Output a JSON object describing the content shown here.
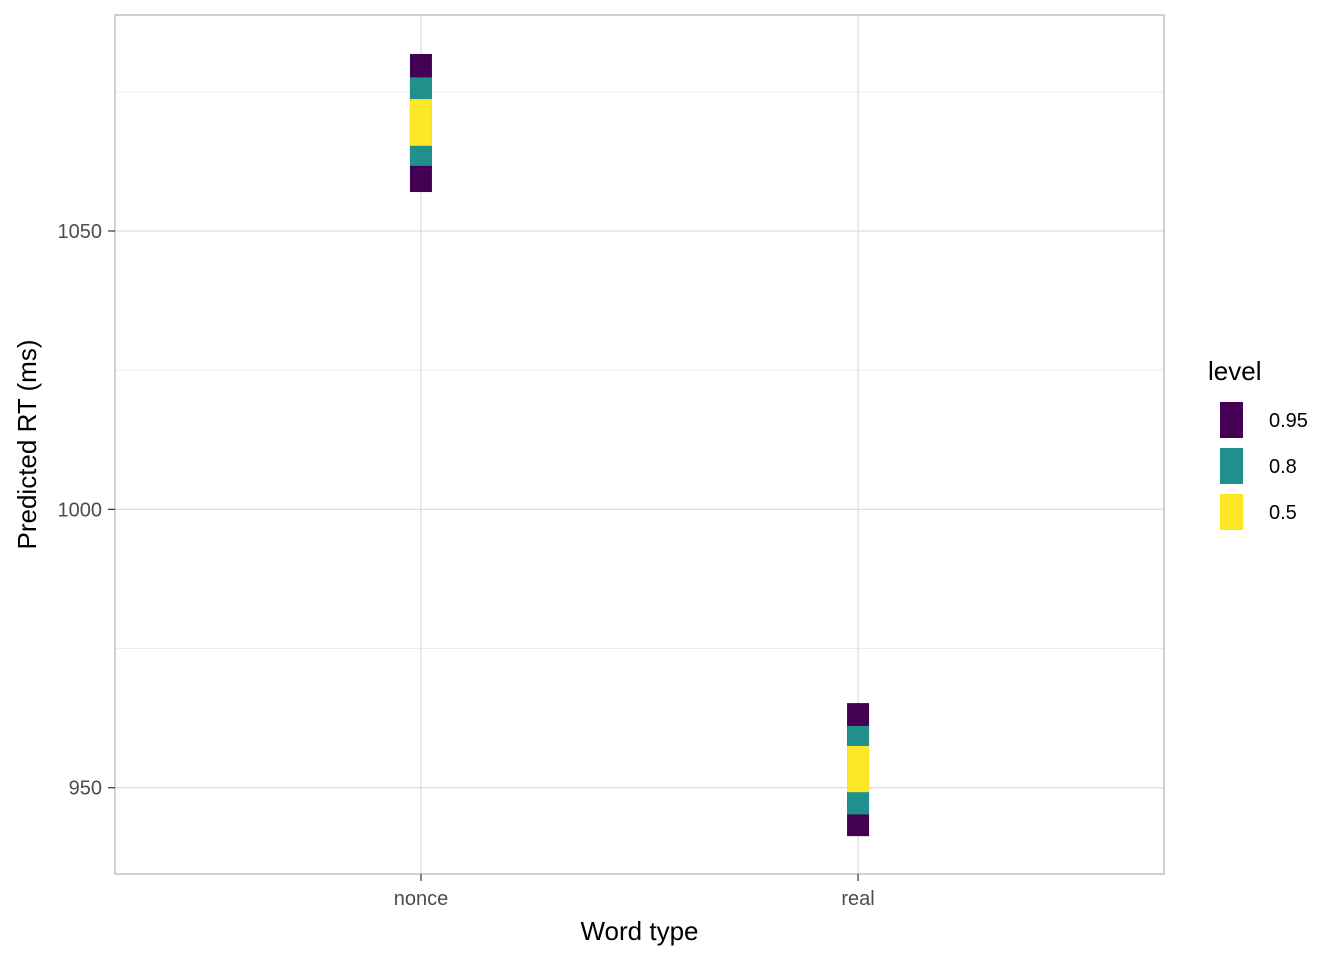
{
  "chart_data": {
    "type": "interval",
    "title": "",
    "xlabel": "Word type",
    "ylabel": "Predicted RT (ms)",
    "categories": [
      "nonce",
      "real"
    ],
    "ylim": [
      934.5,
      1088.8
    ],
    "y_ticks": [
      950,
      1000,
      1050
    ],
    "y_tick_labels": [
      "950",
      "1000",
      "1050"
    ],
    "grid": true,
    "legend": {
      "title": "level",
      "position": "right",
      "entries": [
        {
          "label": "0.95",
          "color": "#440154"
        },
        {
          "label": "0.8",
          "color": "#21908C"
        },
        {
          "label": "0.5",
          "color": "#FDE725"
        }
      ]
    },
    "series": [
      {
        "category": "nonce",
        "intervals": [
          {
            "level": "0.95",
            "lower": 1057.0,
            "upper": 1081.8
          },
          {
            "level": "0.8",
            "lower": 1061.7,
            "upper": 1077.6
          },
          {
            "level": "0.5",
            "lower": 1065.3,
            "upper": 1073.7
          }
        ]
      },
      {
        "category": "real",
        "intervals": [
          {
            "level": "0.95",
            "lower": 941.3,
            "upper": 965.2
          },
          {
            "level": "0.8",
            "lower": 945.2,
            "upper": 961.1
          },
          {
            "level": "0.5",
            "lower": 949.2,
            "upper": 957.5
          }
        ]
      }
    ]
  }
}
